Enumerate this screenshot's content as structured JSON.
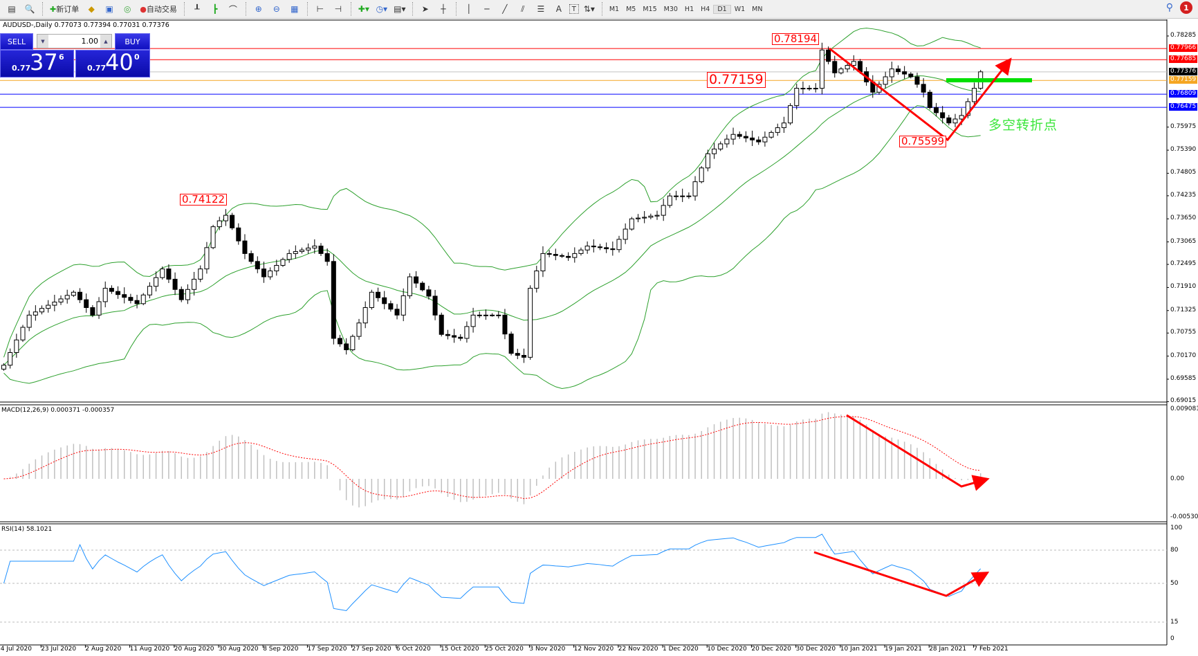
{
  "toolbar": {
    "new_order": "新订单",
    "auto_trading": "自动交易",
    "timeframes": [
      "M1",
      "M5",
      "M15",
      "M30",
      "H1",
      "H4",
      "D1",
      "W1",
      "MN"
    ],
    "active_timeframe": "D1",
    "text_tool": "A",
    "label_tool": "T",
    "notification_count": "1"
  },
  "chart": {
    "title": "AUDUSD-,Daily  0.77073 0.77394 0.77031 0.77376",
    "symbol": "AUDUSD-",
    "period": "Daily",
    "ohlc": {
      "open": "0.77073",
      "high": "0.77394",
      "low": "0.77031",
      "close": "0.77376"
    }
  },
  "trade_panel": {
    "sell_label": "SELL",
    "buy_label": "BUY",
    "lots": "1.00",
    "sell_prefix": "0.77",
    "sell_main": "37",
    "sell_sup": "6",
    "buy_prefix": "0.77",
    "buy_main": "40",
    "buy_sup": "0"
  },
  "annotations": {
    "high_label": "0.78194",
    "key_level_label": "0.77159",
    "aug_high_label": "0.74122",
    "low_label": "0.75599",
    "note": "多空转折点"
  },
  "levels": [
    {
      "price": "0.77966",
      "color": "#ff0000",
      "label_bg": "#ff0000",
      "label_fg": "#ffffff"
    },
    {
      "price": "0.77685",
      "color": "#ff0000",
      "label_bg": "#ff0000",
      "label_fg": "#ffffff"
    },
    {
      "price": "0.77376",
      "color": "#c0c0c0",
      "label_bg": "#000000",
      "label_fg": "#ffffff"
    },
    {
      "price": "0.77159",
      "color": "#f5a623",
      "label_bg": "#f5a623",
      "label_fg": "#ffffff"
    },
    {
      "price": "0.76809",
      "color": "#0000ff",
      "label_bg": "#0000ff",
      "label_fg": "#ffffff"
    },
    {
      "price": "0.76475",
      "color": "#0000ff",
      "label_bg": "#0000ff",
      "label_fg": "#ffffff"
    }
  ],
  "price_axis": [
    "0.78285",
    "0.75975",
    "0.75390",
    "0.74805",
    "0.74235",
    "0.73650",
    "0.73065",
    "0.72495",
    "0.71910",
    "0.71325",
    "0.70755",
    "0.70170",
    "0.69585",
    "0.69015"
  ],
  "macd": {
    "title": "MACD(12,26,9) 0.000371 -0.000357",
    "axis": [
      "0.009081",
      "0.00",
      "-0.005306"
    ]
  },
  "rsi": {
    "title": "RSI(14) 58.1021",
    "axis": [
      "100",
      "80",
      "50",
      "15",
      "0"
    ],
    "levels": [
      80,
      50,
      15
    ]
  },
  "dates": [
    "14 Jul 2020",
    "23 Jul 2020",
    "2 Aug 2020",
    "11 Aug 2020",
    "20 Aug 2020",
    "30 Aug 2020",
    "8 Sep 2020",
    "17 Sep 2020",
    "27 Sep 2020",
    "6 Oct 2020",
    "15 Oct 2020",
    "25 Oct 2020",
    "3 Nov 2020",
    "12 Nov 2020",
    "22 Nov 2020",
    "1 Dec 2020",
    "10 Dec 2020",
    "20 Dec 2020",
    "30 Dec 2020",
    "10 Jan 2021",
    "19 Jan 2021",
    "28 Jan 2021",
    "7 Feb 2021"
  ],
  "colors": {
    "bollinger": "#2ca02c",
    "macd_signal": "#ff0000",
    "macd_hist": "#c0c0c0",
    "rsi": "#1e90ff",
    "arrows": "#ff0000",
    "support_bar": "#00e000"
  },
  "chart_data": {
    "type": "candlestick",
    "indicators": [
      "Bollinger Bands(20,2)",
      "MACD(12,26,9)",
      "RSI(14)"
    ],
    "ylim": [
      0.69015,
      0.78285
    ],
    "closes": [
      0.6994,
      0.7026,
      0.7058,
      0.709,
      0.7121,
      0.7129,
      0.7138,
      0.7146,
      0.7154,
      0.7162,
      0.7171,
      0.7179,
      0.716,
      0.714,
      0.7121,
      0.7155,
      0.7189,
      0.7181,
      0.7173,
      0.7166,
      0.7158,
      0.715,
      0.7172,
      0.7194,
      0.7216,
      0.7238,
      0.7212,
      0.7186,
      0.716,
      0.7186,
      0.7212,
      0.7238,
      0.7292,
      0.7345,
      0.736,
      0.7374,
      0.7342,
      0.7309,
      0.7277,
      0.7257,
      0.7238,
      0.7218,
      0.7233,
      0.7247,
      0.7262,
      0.7277,
      0.7282,
      0.7286,
      0.7291,
      0.7296,
      0.7277,
      0.7257,
      0.7062,
      0.7048,
      0.7033,
      0.7067,
      0.7101,
      0.714,
      0.7179,
      0.7165,
      0.715,
      0.7136,
      0.7121,
      0.717,
      0.7218,
      0.7202,
      0.7185,
      0.7169,
      0.7121,
      0.7072,
      0.7069,
      0.7065,
      0.7062,
      0.7092,
      0.7121,
      0.7121,
      0.7121,
      0.7121,
      0.7121,
      0.7073,
      0.7024,
      0.7019,
      0.7014,
      0.7189,
      0.7233,
      0.7277,
      0.7275,
      0.7272,
      0.727,
      0.7267,
      0.7277,
      0.7286,
      0.7296,
      0.7294,
      0.7292,
      0.7289,
      0.7287,
      0.7313,
      0.7339,
      0.7365,
      0.7367,
      0.7369,
      0.7372,
      0.7374,
      0.7399,
      0.7423,
      0.7423,
      0.7423,
      0.7423,
      0.7459,
      0.7494,
      0.753,
      0.7542,
      0.7555,
      0.7567,
      0.7579,
      0.7574,
      0.757,
      0.7565,
      0.756,
      0.7572,
      0.7584,
      0.7596,
      0.7608,
      0.7652,
      0.7696,
      0.7696,
      0.7696,
      0.7696,
      0.7793,
      0.7764,
      0.7735,
      0.7745,
      0.7754,
      0.7764,
      0.7738,
      0.7712,
      0.7686,
      0.7706,
      0.7725,
      0.7745,
      0.7738,
      0.7732,
      0.7725,
      0.7706,
      0.7686,
      0.7647,
      0.7634,
      0.7621,
      0.7608,
      0.7618,
      0.7627,
      0.7662,
      0.7696,
      0.77376
    ]
  }
}
